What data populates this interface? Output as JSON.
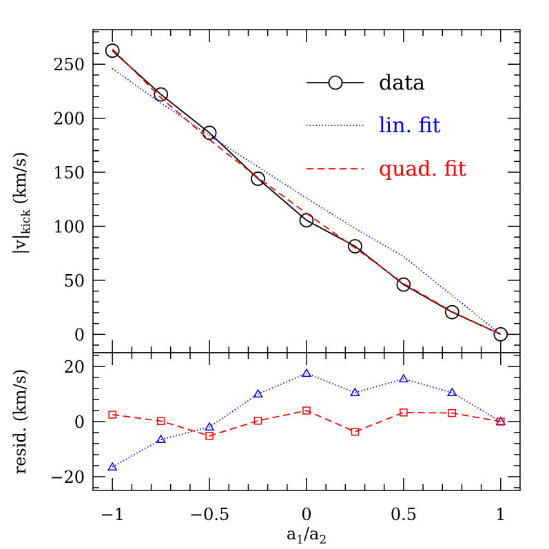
{
  "chart_data": [
    {
      "type": "line",
      "panel": "top",
      "x": [
        -1,
        -0.75,
        -0.5,
        -0.25,
        0,
        0.25,
        0.5,
        0.75,
        1
      ],
      "xlim": [
        -1.1,
        1.1
      ],
      "ylim": [
        -17,
        282
      ],
      "xticks": [
        -1,
        -0.5,
        0,
        0.5,
        1
      ],
      "yticks": [
        0,
        50,
        100,
        150,
        200,
        250
      ],
      "ytick_labels": [
        "0",
        "50",
        "100",
        "150",
        "200",
        "250"
      ],
      "ylabel": {
        "base": "|v|",
        "sub": "kick",
        "unit": " (km/s)"
      },
      "series": [
        {
          "name": "data",
          "color": "#000000",
          "dash": "solid",
          "marker": "circle",
          "values": [
            262.5,
            222,
            186.5,
            144,
            105.5,
            81.5,
            46,
            20.5,
            0
          ]
        },
        {
          "name": "lin. fit",
          "color": "#0000ff",
          "dash": "dotted",
          "marker": "none",
          "values": [
            246,
            214,
            184,
            155,
            126,
            98,
            72,
            36,
            0
          ]
        },
        {
          "name": "quad. fit",
          "color": "#ff0000",
          "dash": "dashed",
          "marker": "none",
          "values": [
            264,
            219,
            180,
            145,
            112,
            80,
            47,
            21,
            0
          ]
        }
      ],
      "legend_position": "top-right"
    },
    {
      "type": "line",
      "panel": "bottom",
      "x": [
        -1,
        -0.75,
        -0.5,
        -0.25,
        0,
        0.25,
        0.5,
        0.75,
        1
      ],
      "xlim": [
        -1.1,
        1.1
      ],
      "ylim": [
        -25,
        25
      ],
      "xticks": [
        -1,
        -0.5,
        0,
        0.5,
        1
      ],
      "xtick_labels": [
        "−1",
        "−0.5",
        "0",
        "0.5",
        "1"
      ],
      "yticks": [
        -20,
        0,
        20
      ],
      "ytick_labels": [
        "−20",
        "0",
        "20"
      ],
      "ylabel": "resid. (km/s)",
      "xlabel": {
        "a": "a",
        "sub1": "1",
        "slash": "/",
        "b": "a",
        "sub2": "2"
      },
      "series": [
        {
          "color": "#0000ff",
          "dash": "dotted",
          "marker": "triangle",
          "values": [
            -16.5,
            -6.5,
            -2,
            10,
            17.5,
            10.5,
            15.5,
            10.5,
            0
          ]
        },
        {
          "color": "#ff0000",
          "dash": "dashed",
          "marker": "square",
          "values": [
            2.5,
            0.2,
            -5.2,
            0.3,
            4,
            -3.7,
            3.3,
            3.1,
            0
          ]
        }
      ]
    }
  ]
}
